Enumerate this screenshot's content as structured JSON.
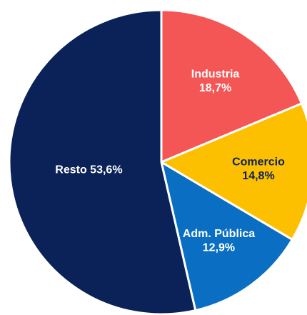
{
  "chart_data": {
    "type": "pie",
    "categories": [
      "Industria",
      "Comercio",
      "Adm. Pública",
      "Resto"
    ],
    "values": [
      18.7,
      14.8,
      12.9,
      53.6
    ],
    "value_labels": [
      "18,7%",
      "14,8%",
      "12,9%",
      "53,6%"
    ],
    "colors": [
      "#f45656",
      "#fcc000",
      "#0a6fc2",
      "#0a2257"
    ]
  }
}
